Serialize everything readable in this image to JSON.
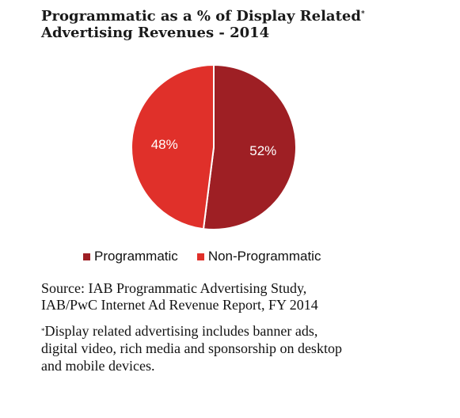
{
  "title": {
    "line1": "Programmatic as a % of  Display Related",
    "line1_marker": "*",
    "line2": "Advertising Revenues - 2014"
  },
  "colors": {
    "programmatic": "#9e1f24",
    "non_programmatic": "#e0302a",
    "divider": "#ffffff"
  },
  "chart_data": {
    "type": "pie",
    "title": "Programmatic as a % of  Display Related* Advertising Revenues - 2014",
    "slices": [
      {
        "name": "Programmatic",
        "value": 52,
        "label": "52%"
      },
      {
        "name": "Non-Programmatic",
        "value": 48,
        "label": "48%"
      }
    ],
    "legend_placement": "bottom"
  },
  "legend": {
    "programmatic": "Programmatic",
    "non_programmatic": "Non-Programmatic"
  },
  "source": {
    "line1": "Source: IAB Programmatic Advertising Study,",
    "line2": "IAB/PwC Internet Ad Revenue Report, FY 2014"
  },
  "note": {
    "marker": "*",
    "line1": "Display related advertising includes banner ads,",
    "line2": "digital video, rich media and sponsorship on desktop",
    "line3": "and mobile devices."
  }
}
